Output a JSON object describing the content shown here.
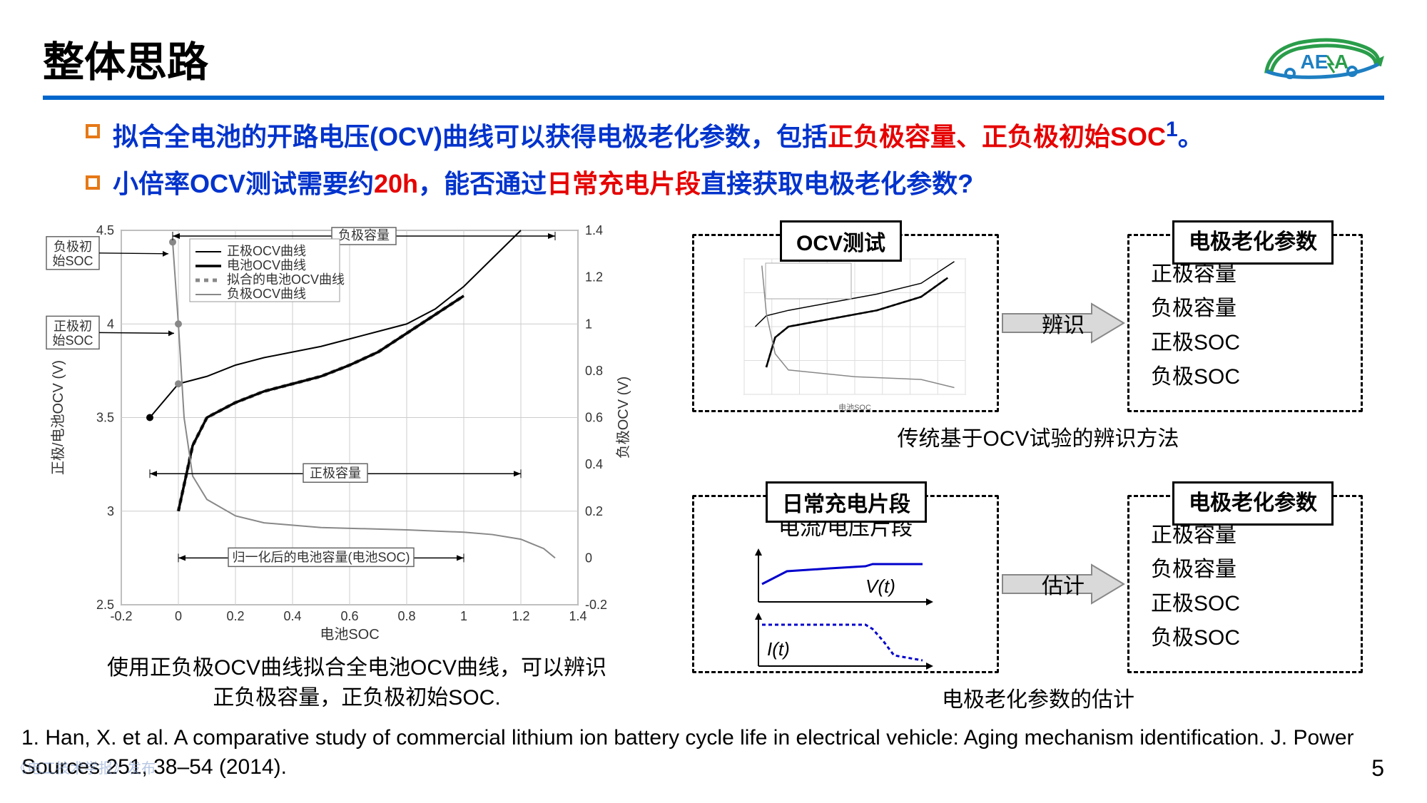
{
  "title": "整体思路",
  "logo_text": "AESA",
  "bullets": [
    {
      "prefix": "拟合全电池的开路电压(OCV)曲线可以获得电极老化参数，包括",
      "red1": "正负极容量、正负极初始SOC",
      "sup": "1",
      "suffix": "。"
    },
    {
      "prefix": "小倍率OCV测试需要约",
      "red1": "20h",
      "mid": "，能否通过",
      "red2": "日常充电片段",
      "suffix": "直接获取电极老化参数?"
    }
  ],
  "main_chart": {
    "type": "line",
    "xlabel": "电池SOC",
    "ylabel_left": "正极/电池OCV (V)",
    "ylabel_right": "负极OCV (V)",
    "xlim": [
      -0.2,
      1.4
    ],
    "ylim_left": [
      2.5,
      4.5
    ],
    "ylim_right": [
      -0.2,
      1.4
    ],
    "xticks": [
      -0.2,
      0,
      0.2,
      0.4,
      0.6,
      0.8,
      1,
      1.2,
      1.4
    ],
    "yticks_left": [
      2.5,
      3,
      3.5,
      4,
      4.5
    ],
    "yticks_right": [
      -0.2,
      0,
      0.2,
      0.4,
      0.6,
      0.8,
      1,
      1.2,
      1.4
    ],
    "background_color": "#ffffff",
    "grid_color": "#cccccc",
    "legend": {
      "items": [
        "正极OCV曲线",
        "电池OCV曲线",
        "拟合的电池OCV曲线",
        "负极OCV曲线"
      ],
      "colors": [
        "#000000",
        "#000000",
        "#888888",
        "#888888"
      ],
      "styles": [
        "solid-thin",
        "solid-thick",
        "dashed-thick",
        "solid-thin"
      ]
    },
    "annotations": {
      "neg_init_soc": "负极初\n始SOC",
      "pos_init_soc": "正极初\n始SOC",
      "neg_capacity": "负极容量",
      "pos_capacity": "正极容量",
      "norm_capacity": "归一化后的电池容量(电池SOC)"
    },
    "series": {
      "cathode": {
        "color": "#000000",
        "width": 2,
        "x": [
          -0.1,
          0,
          0.1,
          0.2,
          0.3,
          0.4,
          0.5,
          0.6,
          0.7,
          0.8,
          0.9,
          1.0,
          1.1,
          1.2
        ],
        "y": [
          3.5,
          3.68,
          3.72,
          3.78,
          3.82,
          3.85,
          3.88,
          3.92,
          3.96,
          4.0,
          4.08,
          4.2,
          4.35,
          4.5
        ]
      },
      "cell": {
        "color": "#000000",
        "width": 3.5,
        "x": [
          0,
          0.05,
          0.1,
          0.2,
          0.3,
          0.4,
          0.5,
          0.6,
          0.7,
          0.8,
          0.9,
          1.0
        ],
        "y": [
          3.0,
          3.35,
          3.5,
          3.58,
          3.64,
          3.68,
          3.72,
          3.78,
          3.85,
          3.95,
          4.05,
          4.15
        ]
      },
      "cell_fit": {
        "color": "#888888",
        "width": 5,
        "dash": "6,6",
        "x": [
          0,
          0.05,
          0.1,
          0.2,
          0.3,
          0.4,
          0.5,
          0.6,
          0.7,
          0.8,
          0.9,
          1.0
        ],
        "y": [
          3.0,
          3.35,
          3.5,
          3.58,
          3.64,
          3.68,
          3.72,
          3.78,
          3.85,
          3.95,
          4.05,
          4.15
        ]
      },
      "anode": {
        "color": "#888888",
        "width": 2,
        "x": [
          -0.02,
          0,
          0.02,
          0.05,
          0.1,
          0.2,
          0.3,
          0.5,
          0.8,
          1.0,
          1.1,
          1.2,
          1.28,
          1.32
        ],
        "y_right": [
          1.35,
          1.0,
          0.6,
          0.35,
          0.25,
          0.18,
          0.15,
          0.13,
          0.12,
          0.11,
          0.1,
          0.08,
          0.04,
          0.0
        ]
      }
    }
  },
  "left_caption_l1": "使用正负极OCV曲线拟合全电池OCV曲线，可以辨识",
  "left_caption_l2": "正负极容量，正负极初始SOC.",
  "flow": {
    "box1_label": "OCV测试",
    "arrow1_label": "辨识",
    "box2_label": "电极老化参数",
    "row1_caption": "传统基于OCV试验的辨识方法",
    "box3_label": "日常充电片段",
    "segment_label": "电流/电压片段",
    "v_label": "V(t)",
    "i_label": "I(t)",
    "arrow2_label": "估计",
    "box4_label": "电极老化参数",
    "row2_caption": "电极老化参数的估计",
    "params": [
      "正极容量",
      "负极容量",
      "正极SOC",
      "负极SOC"
    ]
  },
  "citation": "1. Han, X. et al. A comparative study of commercial lithium ion battery cycle life in electrical vehicle: Aging mechanism identification. J. Power Sources 251, 38–54 (2014).",
  "page_num": "5",
  "watermark": "《电工技术学报》发布",
  "colors": {
    "title_underline": "#0066cc",
    "bullet_border": "#e67817",
    "text_blue": "#0033cc",
    "text_red": "#e60000",
    "logo_green": "#2a9d4a",
    "logo_blue": "#1e7fc2",
    "arrow_fill": "#d9d9d9",
    "arrow_stroke": "#888888",
    "seg_voltage": "#0000cc",
    "seg_current": "#0000cc"
  }
}
